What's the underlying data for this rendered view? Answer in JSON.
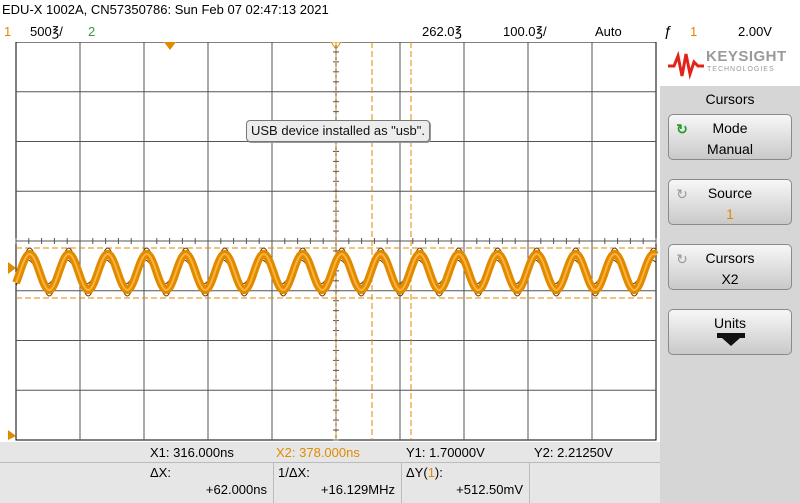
{
  "title": "EDU-X 1002A, CN57350786: Sun Feb 07 02:47:13 2021",
  "status": {
    "ch1_num": "1",
    "ch1_scale": "500℥/",
    "ch2_num": "2",
    "time_delay": "262.0℥",
    "time_scale": "100.0℥/",
    "trigger_mode": "Auto",
    "trigger_icon": "ƒ",
    "trigger_source": "1",
    "trigger_level": "2.00V"
  },
  "toast": "USB device installed as \"usb\".",
  "brand": {
    "name": "KEYSIGHT",
    "sub": "TECHNOLOGIES"
  },
  "menu": {
    "title": "Cursors",
    "mode_label": "Mode",
    "mode_value": "Manual",
    "source_label": "Source",
    "source_value": "1",
    "cursors_label": "Cursors",
    "cursors_value": "X2",
    "units_label": "Units"
  },
  "readout": {
    "x1": "X1:  316.000ns",
    "x2": "X2:  378.000ns",
    "y1": "Y1:  1.70000V",
    "y2": "Y2:  2.21250V",
    "dx_label": "ΔX:",
    "dx_value": "+62.000ns",
    "inv_dx_label": "1/ΔX:",
    "inv_dx_value": "+16.129MHz",
    "dy_label_pre": "ΔY(",
    "dy_label_ch": "1",
    "dy_label_post": "):",
    "dy_value": "+512.50mV"
  },
  "colors": {
    "ch1": "#e08a00",
    "ch2": "#3a9a3a",
    "cursor": "#e08a00"
  }
}
